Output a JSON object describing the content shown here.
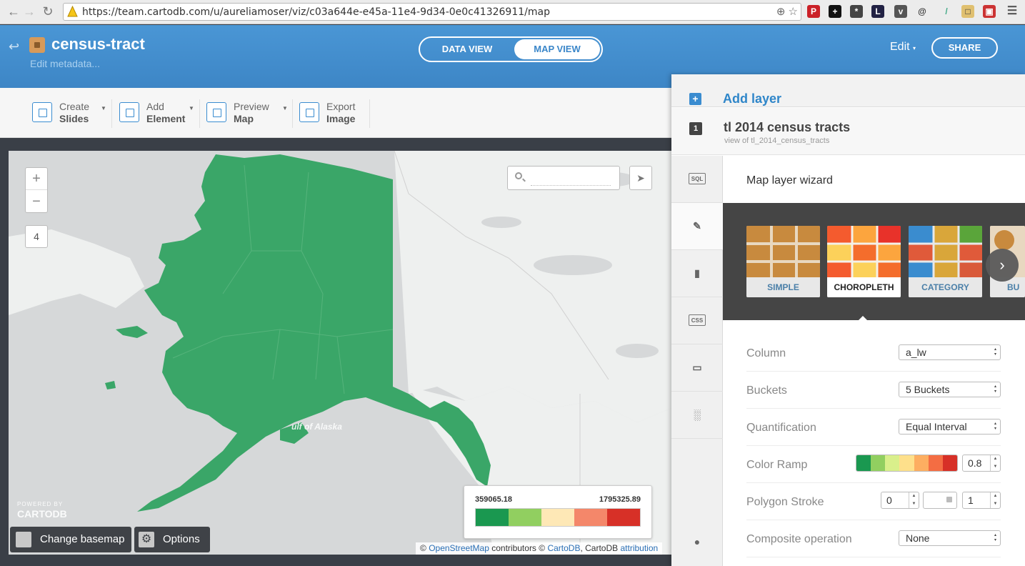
{
  "browser": {
    "url": "https://team.cartodb.com/u/aureliamoser/viz/c03a644e-e45a-11e4-9d34-0e0c41326911/map",
    "back_icon": "back-arrow-icon",
    "forward_icon": "forward-arrow-icon",
    "reload_icon": "reload-icon"
  },
  "header": {
    "title": "census-tract",
    "edit_metadata": "Edit metadata...",
    "data_view": "DATA VIEW",
    "map_view": "MAP VIEW",
    "edit": "Edit",
    "share": "SHARE",
    "brand_color": "#3d86c6"
  },
  "toolbar": {
    "items": [
      {
        "line1": "Create",
        "line2": "Slides"
      },
      {
        "line1": "Add",
        "line2": "Element"
      },
      {
        "line1": "Preview",
        "line2": "Map"
      },
      {
        "line1": "Export",
        "line2": "Image"
      }
    ]
  },
  "map": {
    "zoom_in": "+",
    "zoom_out": "−",
    "zoom_level": "4",
    "gulf_label": "ulf of Alaska",
    "legend": {
      "min": "359065.18",
      "max": "1795325.89",
      "colors": [
        "#1a9850",
        "#91cf60",
        "#fee8b6",
        "#f4876a",
        "#d73027"
      ]
    },
    "powered_by": "POWERED BY",
    "logo": "CARTODB",
    "change_basemap": "Change basemap",
    "options": "Options",
    "attribution": {
      "prefix": "© ",
      "osm": "OpenStreetMap",
      "mid": " contributors © ",
      "cartodb": "CartoDB",
      "mid2": ", CartoDB ",
      "attr": "attribution"
    },
    "fill_color": "#3aa668"
  },
  "panel": {
    "add_layer": "Add layer",
    "layer_number": "1",
    "layer_name": "tl 2014 census tracts",
    "layer_sub": "view of tl_2014_census_tracts",
    "side_tabs": [
      "SQL",
      "wizard",
      "infowindow",
      "CSS",
      "legend",
      "filters"
    ],
    "wizard_title": "Map layer wizard",
    "viz_types": [
      {
        "label": "SIMPLE",
        "selected": false
      },
      {
        "label": "CHOROPLETH",
        "selected": true
      },
      {
        "label": "CATEGORY",
        "selected": false
      },
      {
        "label": "BU",
        "selected": false
      }
    ],
    "form": {
      "column_label": "Column",
      "column_value": "a_lw",
      "buckets_label": "Buckets",
      "buckets_value": "5 Buckets",
      "quant_label": "Quantification",
      "quant_value": "Equal Interval",
      "ramp_label": "Color Ramp",
      "ramp_colors": [
        "#1a9850",
        "#91cf60",
        "#d9ef8b",
        "#fee08b",
        "#fdae61",
        "#f46d43",
        "#d73027"
      ],
      "ramp_opacity": "0.8",
      "stroke_label": "Polygon Stroke",
      "stroke_width": "0",
      "stroke_opacity": "1",
      "composite_label": "Composite operation",
      "composite_value": "None"
    }
  }
}
